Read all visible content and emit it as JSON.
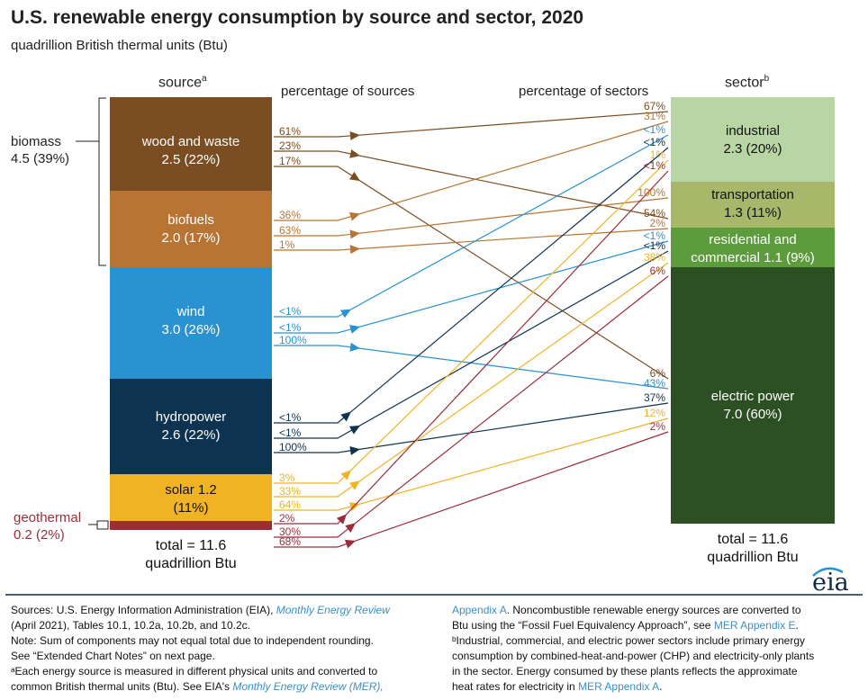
{
  "title": "U.S. renewable energy consumption by source and sector, 2020",
  "subtitle": "quadrillion British thermal units (Btu)",
  "headers": {
    "source": "source",
    "source_sup": "a",
    "pct_sources": "percentage of sources",
    "pct_sectors": "percentage of sectors",
    "sector": "sector",
    "sector_sup": "b"
  },
  "sources": [
    {
      "name": "wood and waste",
      "value_label": "2.5 (22%)",
      "color": "#7b4d22"
    },
    {
      "name": "biofuels",
      "value_label": "2.0 (17%)",
      "color": "#b87433"
    },
    {
      "name": "wind",
      "value_label": "3.0 (26%)",
      "color": "#2a92d0"
    },
    {
      "name": "hydropower",
      "value_label": "2.6 (22%)",
      "color": "#0e3350"
    },
    {
      "name": "solar 1.2",
      "value_label": "(11%)",
      "color": "#f0b323"
    },
    {
      "name": "geothermal",
      "value_label": "0.2 (2%)",
      "color": "#9b2d3a"
    }
  ],
  "biomass": {
    "name": "biomass",
    "value_label": "4.5 (39%)"
  },
  "sectors": [
    {
      "name": "industrial",
      "value_label": "2.3 (20%)",
      "color": "#b8d6a3"
    },
    {
      "name": "transportation",
      "value_label": "1.3  (11%)",
      "color": "#a8b86b"
    },
    {
      "name": "residential and",
      "value_label": "commercial 1.1 (9%)",
      "color": "#5d9c3d"
    },
    {
      "name": "electric power",
      "value_label": "7.0  (60%)",
      "color": "#2c4f24"
    }
  ],
  "totals": {
    "source_line1": "total = 11.6",
    "source_line2": "quadrillion Btu",
    "sector_line1": "total = 11.6",
    "sector_line2": "quadrillion Btu"
  },
  "flows": [
    {
      "source": "wood and waste",
      "sector": "industrial",
      "src_pct": "61%",
      "sec_pct": "67%"
    },
    {
      "source": "wood and waste",
      "sector": "residential and commercial",
      "src_pct": "23%",
      "sec_pct": "54%"
    },
    {
      "source": "wood and waste",
      "sector": "electric power",
      "src_pct": "17%",
      "sec_pct": "6%"
    },
    {
      "source": "biofuels",
      "sector": "industrial",
      "src_pct": "36%",
      "sec_pct": "31%"
    },
    {
      "source": "biofuels",
      "sector": "transportation",
      "src_pct": "63%",
      "sec_pct": "100%"
    },
    {
      "source": "biofuels",
      "sector": "residential and commercial",
      "src_pct": "1%",
      "sec_pct": "2%"
    },
    {
      "source": "wind",
      "sector": "industrial",
      "src_pct": "<1%",
      "sec_pct": "<1%"
    },
    {
      "source": "wind",
      "sector": "residential and commercial",
      "src_pct": "<1%",
      "sec_pct": "<1%"
    },
    {
      "source": "wind",
      "sector": "electric power",
      "src_pct": "100%",
      "sec_pct": "43%"
    },
    {
      "source": "hydropower",
      "sector": "industrial",
      "src_pct": "<1%",
      "sec_pct": "<1%"
    },
    {
      "source": "hydropower",
      "sector": "residential and commercial",
      "src_pct": "<1%",
      "sec_pct": "<1%"
    },
    {
      "source": "hydropower",
      "sector": "electric power",
      "src_pct": "100%",
      "sec_pct": "37%"
    },
    {
      "source": "solar",
      "sector": "industrial",
      "src_pct": "3%",
      "sec_pct": "1%"
    },
    {
      "source": "solar",
      "sector": "residential and commercial",
      "src_pct": "33%",
      "sec_pct": "38%"
    },
    {
      "source": "solar",
      "sector": "electric power",
      "src_pct": "64%",
      "sec_pct": "12%"
    },
    {
      "source": "geothermal",
      "sector": "industrial",
      "src_pct": "2%",
      "sec_pct": "<1%"
    },
    {
      "source": "geothermal",
      "sector": "residential and commercial",
      "src_pct": "30%",
      "sec_pct": "6%"
    },
    {
      "source": "geothermal",
      "sector": "electric power",
      "src_pct": "68%",
      "sec_pct": "2%"
    }
  ],
  "footer": {
    "l1a": "Sources: U.S. Energy Information Administration (EIA), ",
    "l1b": "Monthly Energy Review",
    "l2": "(April 2021), Tables 10.1, 10.2a, 10.2b, and 10.2c.",
    "l3": "Note: Sum of components may not equal total due to independent rounding.",
    "l4": "See “Extended Chart Notes” on next page.",
    "l5": "ᵃEach energy source is measured in different physical units and converted to",
    "l6a": "common British thermal units (Btu). See EIA's ",
    "l6b": "Monthly Energy Review (MER),",
    "r1a": "Appendix A",
    "r1b": ". Noncombustible renewable energy sources are converted to",
    "r2a": "Btu using the “Fossil Fuel Equivalency Approach”, see ",
    "r2b": "MER Appendix E",
    "r2c": ".",
    "r3": "ᵇIndustrial, commercial, and electric power sectors include primary energy",
    "r4": "consumption by combined-heat-and-power (CHP) and electricity-only plants",
    "r5": "in the sector. Energy consumed by these plants reflects the approximate",
    "r6a": "heat rates for electricity in ",
    "r6b": "MER Appendix A",
    "r6c": "."
  },
  "logo": "eia"
}
